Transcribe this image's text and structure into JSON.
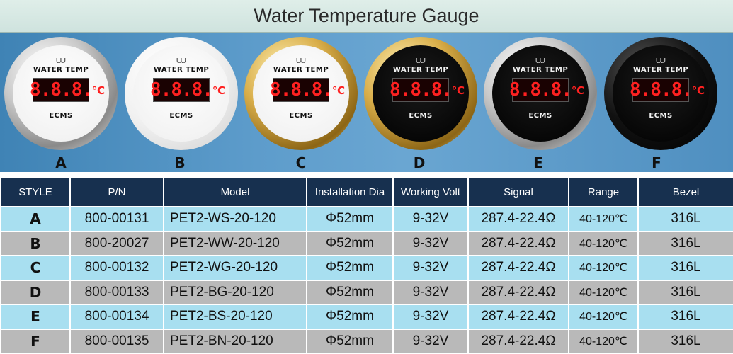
{
  "title": "Water Temperature Gauge",
  "gauges": [
    {
      "label": "A",
      "face": "white",
      "bezel": "chrome"
    },
    {
      "label": "B",
      "face": "white",
      "bezel": "white"
    },
    {
      "label": "C",
      "face": "white",
      "bezel": "gold"
    },
    {
      "label": "D",
      "face": "black",
      "bezel": "gold"
    },
    {
      "label": "E",
      "face": "black",
      "bezel": "chrome"
    },
    {
      "label": "F",
      "face": "black",
      "bezel": "black"
    }
  ],
  "gauge_face": {
    "title": "WATER TEMP",
    "display": "8.8.8.",
    "unit": "℃",
    "brand": "ECMS"
  },
  "table": {
    "headers": [
      "STYLE",
      "P/N",
      "Model",
      "Installation Dia",
      "Working Volt",
      "Signal",
      "Range",
      "Bezel"
    ],
    "rows": [
      {
        "style": "A",
        "pn": "800-00131",
        "model": "PET2-WS-20-120",
        "dia": "Φ52mm",
        "volt": "9-32V",
        "signal": "287.4-22.4Ω",
        "range": "40-120℃",
        "bezel": "316L"
      },
      {
        "style": "B",
        "pn": "800-20027",
        "model": "PET2-WW-20-120",
        "dia": "Φ52mm",
        "volt": "9-32V",
        "signal": "287.4-22.4Ω",
        "range": "40-120℃",
        "bezel": "316L"
      },
      {
        "style": "C",
        "pn": "800-00132",
        "model": "PET2-WG-20-120",
        "dia": "Φ52mm",
        "volt": "9-32V",
        "signal": "287.4-22.4Ω",
        "range": "40-120℃",
        "bezel": "316L"
      },
      {
        "style": "D",
        "pn": "800-00133",
        "model": "PET2-BG-20-120",
        "dia": "Φ52mm",
        "volt": "9-32V",
        "signal": "287.4-22.4Ω",
        "range": "40-120℃",
        "bezel": "316L"
      },
      {
        "style": "E",
        "pn": "800-00134",
        "model": "PET2-BS-20-120",
        "dia": "Φ52mm",
        "volt": "9-32V",
        "signal": "287.4-22.4Ω",
        "range": "40-120℃",
        "bezel": "316L"
      },
      {
        "style": "F",
        "pn": "800-00135",
        "model": "PET2-BN-20-120",
        "dia": "Φ52mm",
        "volt": "9-32V",
        "signal": "287.4-22.4Ω",
        "range": "40-120℃",
        "bezel": "316L"
      }
    ]
  },
  "colors": {
    "header_bg": "#17304f",
    "row_odd": "#a8dff0",
    "row_even": "#b9b9b9",
    "display_red": "#ff2020"
  }
}
